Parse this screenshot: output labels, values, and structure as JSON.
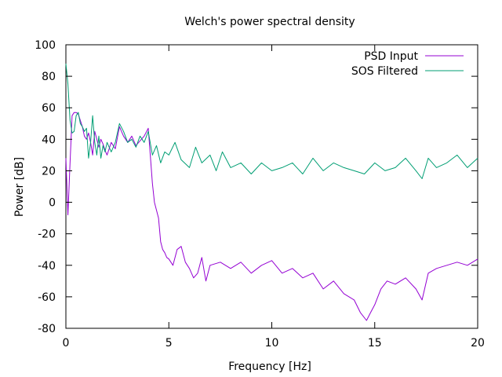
{
  "chart_data": {
    "type": "line",
    "title": "Welch's power spectral density",
    "xlabel": "Frequency [Hz]",
    "ylabel": "Power [dB]",
    "xlim": [
      0,
      20
    ],
    "ylim": [
      -80,
      100
    ],
    "xticks": [
      0,
      5,
      10,
      15,
      20
    ],
    "yticks": [
      -80,
      -60,
      -40,
      -20,
      0,
      20,
      40,
      60,
      80,
      100
    ],
    "grid": false,
    "legend_position": "top-right",
    "series": [
      {
        "name": "PSD Input",
        "color": "#9400d3",
        "x": [
          0,
          0.1,
          0.2,
          0.3,
          0.4,
          0.5,
          0.6,
          0.7,
          0.8,
          0.9,
          1.0,
          1.1,
          1.2,
          1.3,
          1.4,
          1.5,
          1.6,
          1.7,
          1.8,
          1.9,
          2.0,
          2.2,
          2.4,
          2.6,
          2.8,
          3.0,
          3.2,
          3.4,
          3.6,
          3.8,
          4.0,
          4.1,
          4.2,
          4.3,
          4.4,
          4.5,
          4.6,
          4.7,
          4.8,
          4.9,
          5.0,
          5.2,
          5.4,
          5.6,
          5.8,
          6.0,
          6.2,
          6.4,
          6.6,
          6.8,
          7.0,
          7.5,
          8.0,
          8.5,
          9.0,
          9.5,
          10.0,
          10.5,
          11.0,
          11.5,
          12.0,
          12.5,
          13.0,
          13.5,
          14.0,
          14.3,
          14.6,
          14.8,
          15.0,
          15.3,
          15.6,
          16.0,
          16.5,
          17.0,
          17.3,
          17.6,
          18.0,
          18.5,
          19.0,
          19.5,
          20.0
        ],
        "y": [
          28,
          -8,
          25,
          55,
          57,
          57,
          56,
          52,
          48,
          42,
          40,
          44,
          38,
          30,
          45,
          40,
          35,
          40,
          37,
          33,
          30,
          38,
          34,
          48,
          42,
          38,
          42,
          36,
          39,
          42,
          47,
          30,
          12,
          0,
          -5,
          -10,
          -25,
          -30,
          -32,
          -35,
          -36,
          -40,
          -30,
          -28,
          -38,
          -42,
          -48,
          -45,
          -35,
          -50,
          -40,
          -38,
          -42,
          -38,
          -45,
          -40,
          -37,
          -45,
          -42,
          -48,
          -45,
          -55,
          -50,
          -58,
          -62,
          -70,
          -75,
          -70,
          -65,
          -55,
          -50,
          -52,
          -48,
          -55,
          -62,
          -45,
          -42,
          -40,
          -38,
          -40,
          -36
        ]
      },
      {
        "name": "SOS Filtered",
        "color": "#009e73",
        "x": [
          0,
          0.1,
          0.2,
          0.3,
          0.4,
          0.5,
          0.6,
          0.7,
          0.8,
          0.9,
          1.0,
          1.1,
          1.2,
          1.3,
          1.4,
          1.5,
          1.6,
          1.7,
          1.8,
          1.9,
          2.0,
          2.2,
          2.4,
          2.6,
          2.8,
          3.0,
          3.2,
          3.4,
          3.6,
          3.8,
          4.0,
          4.2,
          4.4,
          4.6,
          4.8,
          5.0,
          5.3,
          5.6,
          6.0,
          6.3,
          6.6,
          7.0,
          7.3,
          7.6,
          8.0,
          8.5,
          9.0,
          9.5,
          10.0,
          10.5,
          11.0,
          11.5,
          12.0,
          12.5,
          13.0,
          13.5,
          14.0,
          14.5,
          15.0,
          15.5,
          16.0,
          16.5,
          17.0,
          17.3,
          17.6,
          18.0,
          18.5,
          19.0,
          19.5,
          20.0
        ],
        "y": [
          88,
          75,
          52,
          44,
          45,
          55,
          57,
          50,
          48,
          45,
          47,
          28,
          38,
          55,
          38,
          30,
          42,
          28,
          36,
          32,
          38,
          32,
          38,
          50,
          45,
          38,
          40,
          35,
          42,
          38,
          45,
          30,
          36,
          25,
          32,
          30,
          38,
          27,
          22,
          35,
          25,
          30,
          20,
          32,
          22,
          25,
          18,
          25,
          20,
          22,
          25,
          18,
          28,
          20,
          25,
          22,
          20,
          18,
          25,
          20,
          22,
          28,
          20,
          15,
          28,
          22,
          25,
          30,
          22,
          28
        ]
      }
    ]
  }
}
